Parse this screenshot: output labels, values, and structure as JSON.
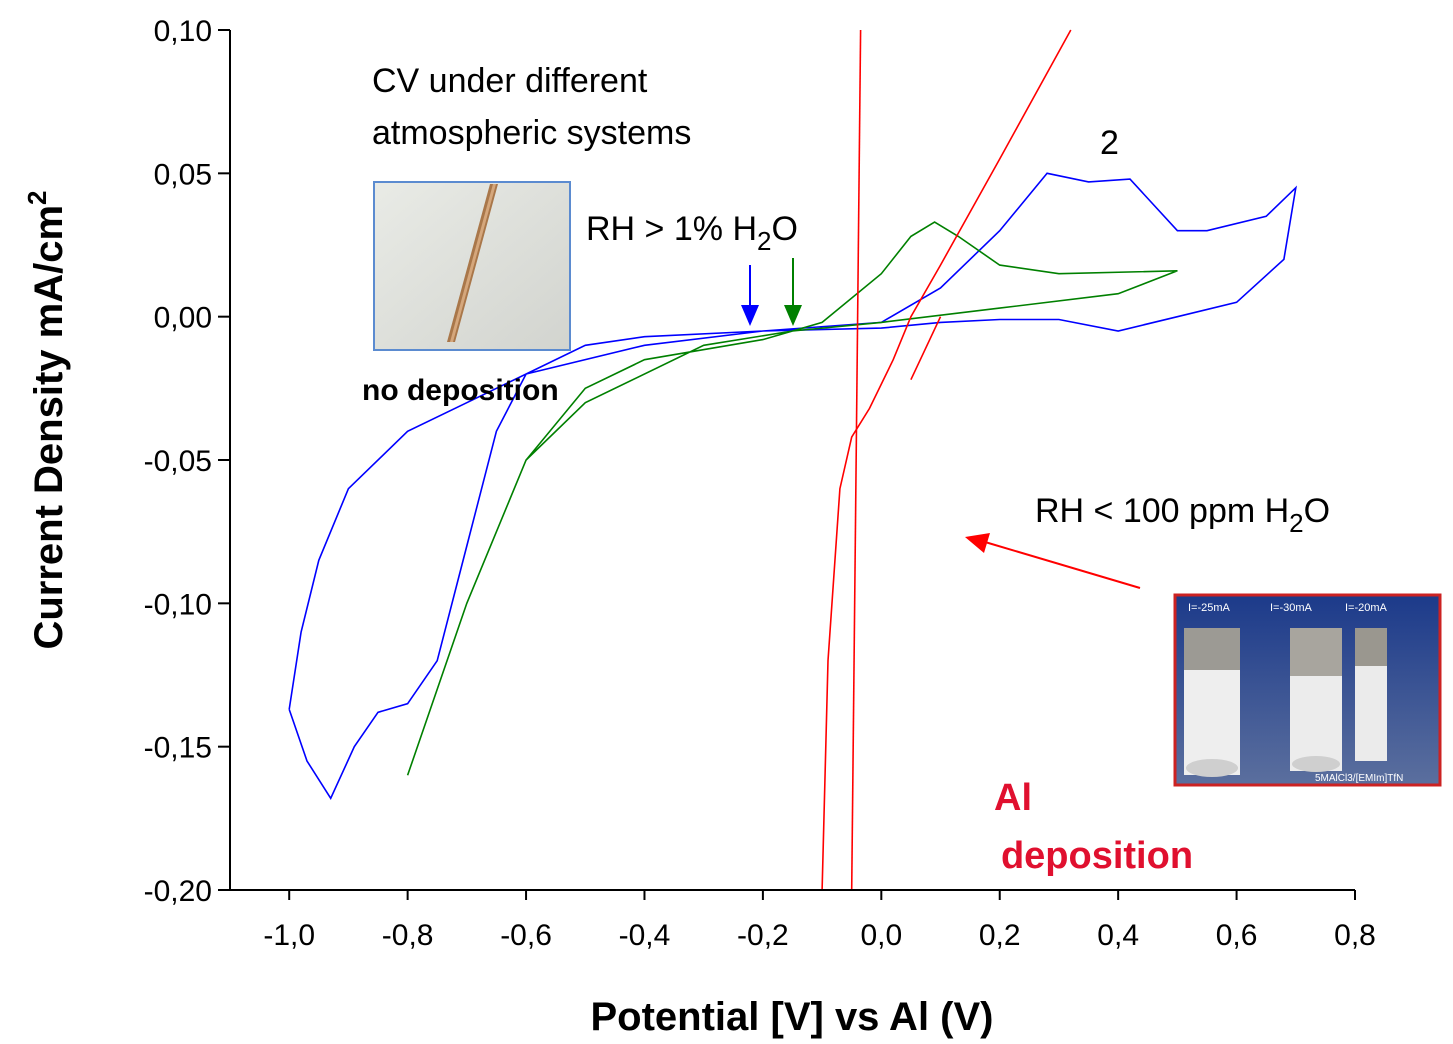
{
  "chart_data": {
    "type": "line",
    "x_label": "Potential [V] vs Al (V)",
    "y_label": [
      "Current Density mA/cm",
      "2"
    ],
    "xlim": [
      -1.1,
      0.8
    ],
    "ylim": [
      -0.2,
      0.1
    ],
    "xticks": [
      {
        "value": -1.0,
        "label": "-1,0"
      },
      {
        "value": -0.8,
        "label": "-0,8"
      },
      {
        "value": -0.6,
        "label": "-0,6"
      },
      {
        "value": -0.4,
        "label": "-0,4"
      },
      {
        "value": -0.2,
        "label": "-0,2"
      },
      {
        "value": 0.0,
        "label": "0,0"
      },
      {
        "value": 0.2,
        "label": "0,2"
      },
      {
        "value": 0.4,
        "label": "0,4"
      },
      {
        "value": 0.6,
        "label": "0,6"
      },
      {
        "value": 0.8,
        "label": "0,8"
      }
    ],
    "yticks": [
      {
        "value": -0.2,
        "label": "-0,20"
      },
      {
        "value": -0.15,
        "label": "-0,15"
      },
      {
        "value": -0.1,
        "label": "-0,10"
      },
      {
        "value": -0.05,
        "label": "-0,05"
      },
      {
        "value": 0.0,
        "label": "0,00"
      },
      {
        "value": 0.05,
        "label": "0,05"
      },
      {
        "value": 0.1,
        "label": "0,10"
      }
    ],
    "series": [
      {
        "color": "#0000ff",
        "x": [
          -1.0,
          -0.97,
          -0.93,
          -0.89,
          -0.85,
          -0.8,
          -0.75,
          -0.7,
          -0.65,
          -0.6,
          -0.5,
          -0.4,
          -0.2,
          0.0,
          0.1,
          0.2,
          0.28,
          0.35,
          0.42,
          0.5,
          0.55,
          0.65,
          0.7,
          0.68,
          0.6,
          0.5,
          0.4,
          0.3,
          0.2,
          0.1,
          0.0,
          -0.2,
          -0.4,
          -0.6,
          -0.7,
          -0.8,
          -0.9,
          -0.95,
          -0.98,
          -1.0
        ],
        "values": [
          -0.137,
          -0.155,
          -0.168,
          -0.15,
          -0.138,
          -0.135,
          -0.12,
          -0.08,
          -0.04,
          -0.02,
          -0.01,
          -0.007,
          -0.005,
          -0.002,
          0.01,
          0.03,
          0.05,
          0.047,
          0.048,
          0.03,
          0.03,
          0.035,
          0.045,
          0.02,
          0.005,
          0.0,
          -0.005,
          -0.001,
          -0.001,
          -0.002,
          -0.004,
          -0.005,
          -0.01,
          -0.02,
          -0.03,
          -0.04,
          -0.06,
          -0.085,
          -0.11,
          -0.137
        ]
      },
      {
        "color": "#008000",
        "x": [
          -0.8,
          -0.7,
          -0.6,
          -0.5,
          -0.4,
          -0.2,
          -0.1,
          0.0,
          0.05,
          0.09,
          0.13,
          0.2,
          0.3,
          0.5,
          0.4,
          0.2,
          0.0,
          -0.15,
          -0.3,
          -0.5,
          -0.6,
          -0.7,
          -0.8
        ],
        "values": [
          -0.16,
          -0.1,
          -0.05,
          -0.025,
          -0.015,
          -0.008,
          -0.002,
          0.015,
          0.028,
          0.033,
          0.028,
          0.018,
          0.015,
          0.016,
          0.008,
          0.003,
          -0.002,
          -0.005,
          -0.01,
          -0.03,
          -0.05,
          -0.1,
          -0.16
        ]
      },
      {
        "color": "#ff0000",
        "x": [
          -0.05,
          -0.035
        ],
        "values": [
          -0.2,
          0.1
        ]
      },
      {
        "color": "#ff0000",
        "x": [
          -0.1,
          -0.09,
          -0.07,
          -0.05,
          -0.02,
          0.02,
          0.05,
          0.1,
          0.2,
          0.32
        ],
        "values": [
          -0.2,
          -0.12,
          -0.06,
          -0.042,
          -0.032,
          -0.015,
          0.0,
          0.018,
          0.055,
          0.1
        ]
      },
      {
        "color": "#ff0000",
        "x": [
          0.05,
          0.1
        ],
        "values": [
          -0.022,
          0.0
        ]
      }
    ],
    "annotations": {
      "title_lines": [
        "CV under different",
        "atmospheric systems"
      ],
      "peak_label": "2",
      "rh_high": [
        "RH > 1% H",
        "2",
        "O"
      ],
      "rh_low": [
        "RH < 100 ppm H",
        "2",
        "O"
      ],
      "no_deposition": "no deposition",
      "al_deposition": [
        "Al",
        "deposition"
      ],
      "photo_labels": [
        "I=-25mA",
        "I=-30mA",
        "I=-20mA",
        "5MAlCl3/[EMIm]TfN"
      ]
    }
  }
}
